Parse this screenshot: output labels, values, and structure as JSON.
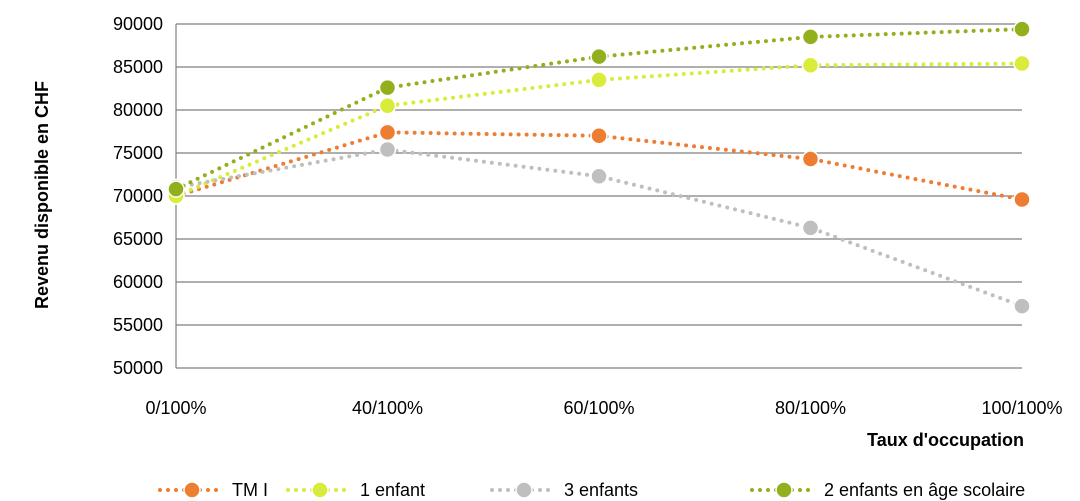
{
  "chart_data": {
    "type": "line",
    "categories": [
      "0/100%",
      "40/100%",
      "60/100%",
      "80/100%",
      "100/100%"
    ],
    "xlabel": "Taux d'occupation",
    "ylabel": "Revenu disponible en CHF",
    "ylim": [
      50000,
      90000
    ],
    "yticks": [
      50000,
      55000,
      60000,
      65000,
      70000,
      75000,
      80000,
      85000,
      90000
    ],
    "grid": true,
    "legend_position": "bottom",
    "series": [
      {
        "name": "TM I",
        "color": "#ED7D31",
        "values": [
          70000,
          77400,
          77000,
          74300,
          69600
        ]
      },
      {
        "name": "1 enfant",
        "color": "#D9EC3B",
        "values": [
          70000,
          80500,
          83500,
          85200,
          85400
        ]
      },
      {
        "name": "3 enfants",
        "color": "#BFBFBF",
        "values": [
          71000,
          75400,
          72300,
          66300,
          57200
        ]
      },
      {
        "name": "2 enfants en âge scolaire",
        "color": "#92B01E",
        "values": [
          70800,
          82600,
          86200,
          88500,
          89400
        ]
      }
    ]
  }
}
